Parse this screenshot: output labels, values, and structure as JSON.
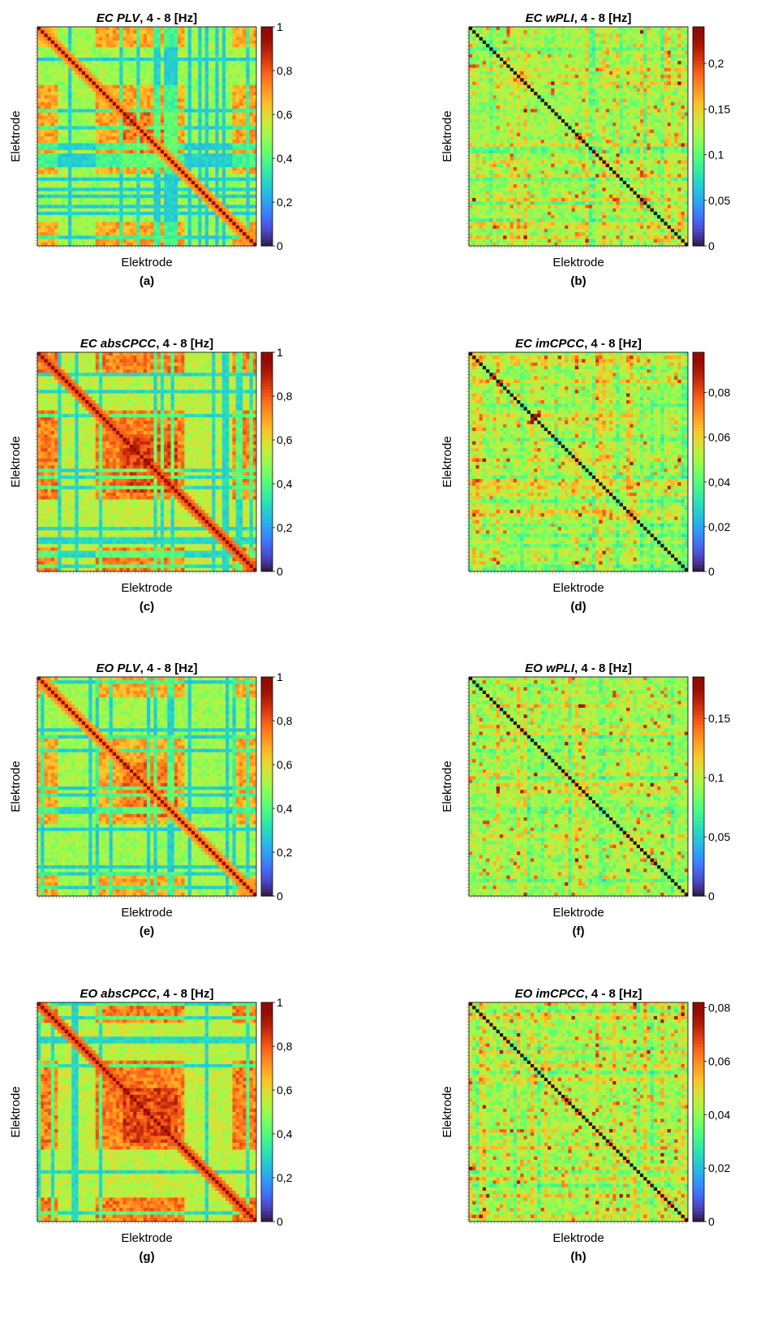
{
  "chart_data": [
    {
      "type": "heatmap",
      "title_em": "EC PLV",
      "title_rest": ", 4 - 8 [Hz]",
      "xlabel": "Elektrode",
      "ylabel": "Elektrode",
      "caption": "(a)",
      "colormap": "turbo",
      "clim": [
        0,
        1
      ],
      "colorbar_ticks": [
        0,
        0.2,
        0.4,
        0.6,
        0.8,
        1
      ],
      "colorbar_tick_labels": [
        "0",
        "0,2",
        "0,4",
        "0,6",
        "0,8",
        "1"
      ]
    },
    {
      "type": "heatmap",
      "title_em": "EC wPLI",
      "title_rest": ", 4 - 8 [Hz]",
      "xlabel": "Elektrode",
      "ylabel": "Elektrode",
      "caption": "(b)",
      "colormap": "turbo",
      "clim": [
        0,
        0.24
      ],
      "colorbar_ticks": [
        0,
        0.05,
        0.1,
        0.15,
        0.2
      ],
      "colorbar_tick_labels": [
        "0",
        "0,05",
        "0,1",
        "0,15",
        "0,2"
      ]
    },
    {
      "type": "heatmap",
      "title_em": "EC absCPCC",
      "title_rest": ", 4 - 8 [Hz]",
      "xlabel": "Elektrode",
      "ylabel": "Elektrode",
      "caption": "(c)",
      "colormap": "turbo",
      "clim": [
        0,
        1
      ],
      "colorbar_ticks": [
        0,
        0.2,
        0.4,
        0.6,
        0.8,
        1
      ],
      "colorbar_tick_labels": [
        "0",
        "0,2",
        "0,4",
        "0,6",
        "0,8",
        "1"
      ]
    },
    {
      "type": "heatmap",
      "title_em": "EC imCPCC",
      "title_rest": ", 4 - 8 [Hz]",
      "xlabel": "Elektrode",
      "ylabel": "Elektrode",
      "caption": "(d)",
      "colormap": "turbo",
      "clim": [
        0,
        0.098
      ],
      "colorbar_ticks": [
        0,
        0.02,
        0.04,
        0.06,
        0.08
      ],
      "colorbar_tick_labels": [
        "0",
        "0,02",
        "0,04",
        "0,06",
        "0,08"
      ]
    },
    {
      "type": "heatmap",
      "title_em": "EO PLV",
      "title_rest": ", 4 - 8 [Hz]",
      "xlabel": "Elektrode",
      "ylabel": "Elektrode",
      "caption": "(e)",
      "colormap": "turbo",
      "clim": [
        0,
        1
      ],
      "colorbar_ticks": [
        0,
        0.2,
        0.4,
        0.6,
        0.8,
        1
      ],
      "colorbar_tick_labels": [
        "0",
        "0,2",
        "0,4",
        "0,6",
        "0,8",
        "1"
      ]
    },
    {
      "type": "heatmap",
      "title_em": "EO wPLI",
      "title_rest": ", 4 - 8 [Hz]",
      "xlabel": "Elektrode",
      "ylabel": "Elektrode",
      "caption": "(f)",
      "colormap": "turbo",
      "clim": [
        0,
        0.185
      ],
      "colorbar_ticks": [
        0,
        0.05,
        0.1,
        0.15
      ],
      "colorbar_tick_labels": [
        "0",
        "0,05",
        "0,1",
        "0,15"
      ]
    },
    {
      "type": "heatmap",
      "title_em": "EO absCPCC",
      "title_rest": ", 4 - 8 [Hz]",
      "xlabel": "Elektrode",
      "ylabel": "Elektrode",
      "caption": "(g)",
      "colormap": "turbo",
      "clim": [
        0,
        1
      ],
      "colorbar_ticks": [
        0,
        0.2,
        0.4,
        0.6,
        0.8,
        1
      ],
      "colorbar_tick_labels": [
        "0",
        "0,2",
        "0,4",
        "0,6",
        "0,8",
        "1"
      ]
    },
    {
      "type": "heatmap",
      "title_em": "EO imCPCC",
      "title_rest": ", 4 - 8 [Hz]",
      "xlabel": "Elektrode",
      "ylabel": "Elektrode",
      "caption": "(h)",
      "colormap": "turbo",
      "clim": [
        0,
        0.082
      ],
      "colorbar_ticks": [
        0,
        0.02,
        0.04,
        0.06,
        0.08
      ],
      "colorbar_tick_labels": [
        "0",
        "0,02",
        "0,04",
        "0,06",
        "0,08"
      ]
    }
  ]
}
